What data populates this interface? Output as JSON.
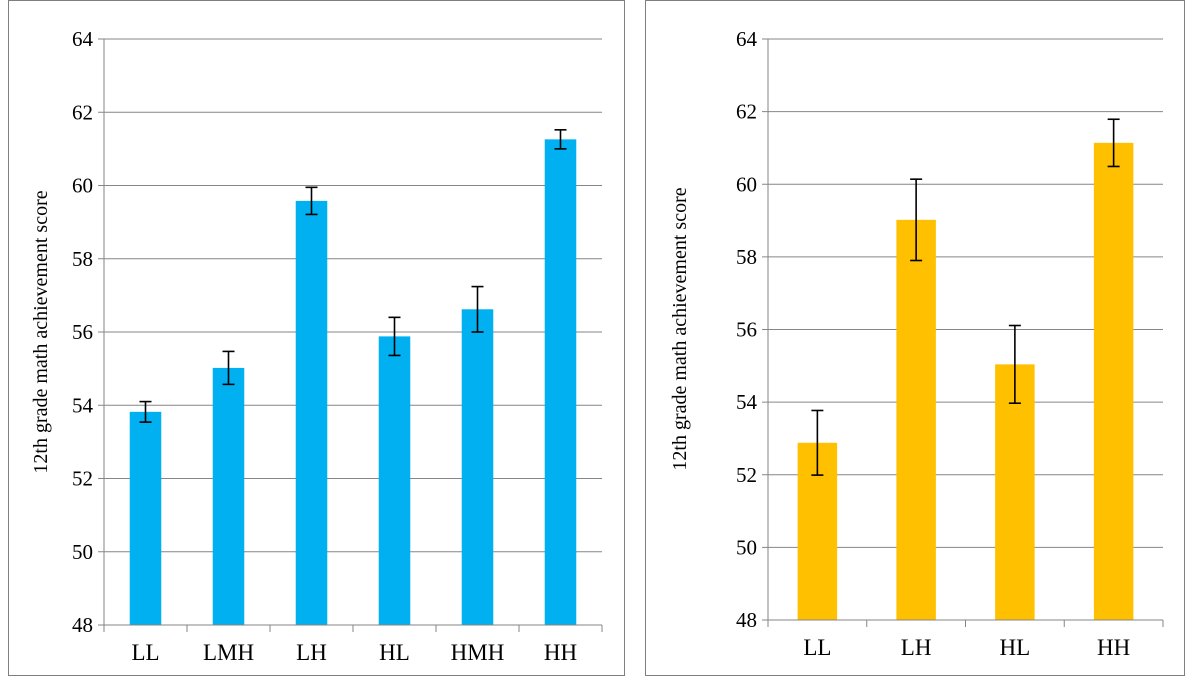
{
  "chart_data": [
    {
      "type": "bar",
      "categories": [
        "LL",
        "LMH",
        "LH",
        "HL",
        "HMH",
        "HH"
      ],
      "values": [
        53.82,
        55.02,
        59.58,
        55.88,
        56.62,
        61.26
      ],
      "errors": [
        0.28,
        0.45,
        0.37,
        0.52,
        0.62,
        0.26
      ],
      "title": "",
      "xlabel": "",
      "ylabel": "12th grade math achievement score",
      "ylim": [
        48,
        64
      ],
      "yticks": [
        48,
        50,
        52,
        54,
        56,
        58,
        60,
        62,
        64
      ],
      "grid": true,
      "color": "#00b0f0"
    },
    {
      "type": "bar",
      "categories": [
        "LL",
        "LH",
        "HL",
        "HH"
      ],
      "values": [
        52.88,
        59.02,
        55.04,
        61.14
      ],
      "errors": [
        0.89,
        1.12,
        1.07,
        0.65
      ],
      "title": "",
      "xlabel": "",
      "ylabel": "12th grade math achievement score",
      "ylim": [
        48,
        64
      ],
      "yticks": [
        48,
        50,
        52,
        54,
        56,
        58,
        60,
        62,
        64
      ],
      "grid": true,
      "color": "#ffc000"
    }
  ]
}
